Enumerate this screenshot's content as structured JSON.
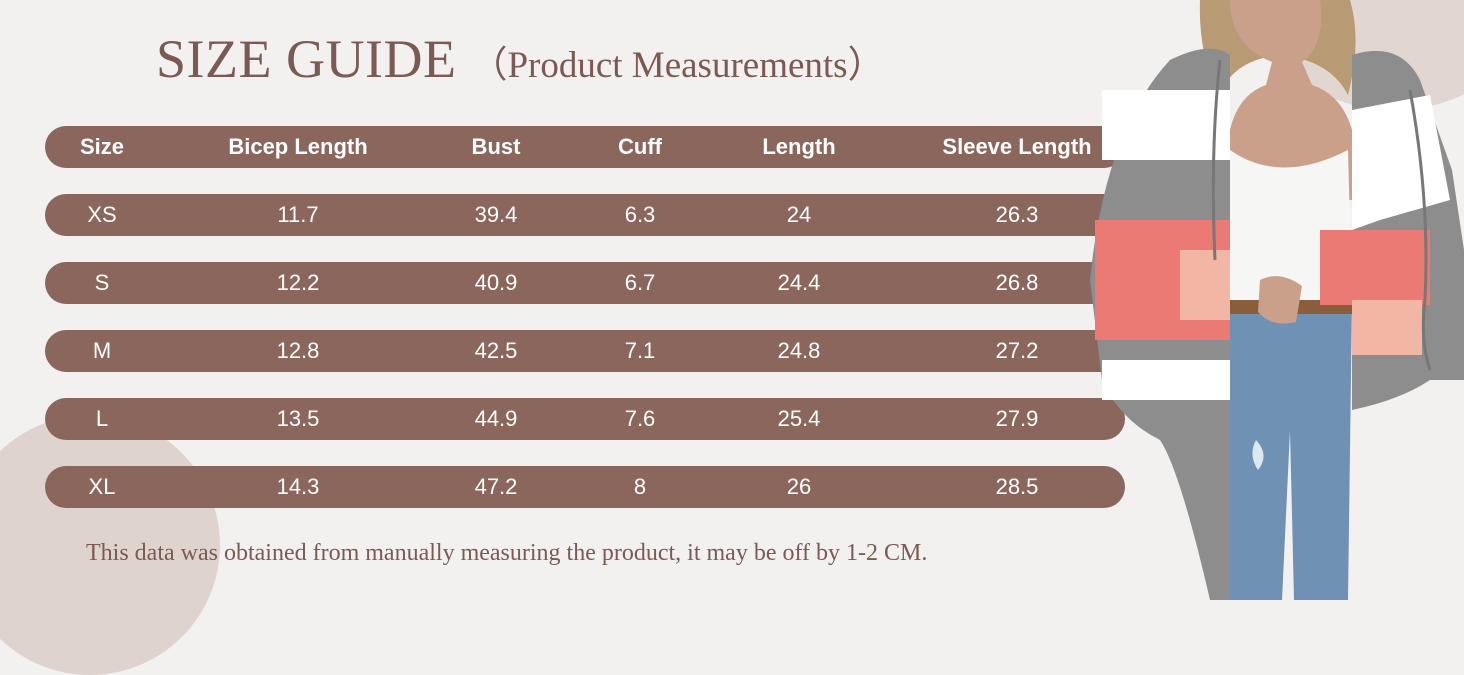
{
  "title": {
    "main": "SIZE GUIDE",
    "sub": "（Product Measurements）"
  },
  "table": {
    "headers": [
      "Size",
      "Bicep Length",
      "Bust",
      "Cuff",
      "Length",
      "Sleeve Length"
    ],
    "rows": [
      [
        "XS",
        "11.7",
        "39.4",
        "6.3",
        "24",
        "26.3"
      ],
      [
        "S",
        "12.2",
        "40.9",
        "6.7",
        "24.4",
        "26.8"
      ],
      [
        "M",
        "12.8",
        "42.5",
        "7.1",
        "24.8",
        "27.2"
      ],
      [
        "L",
        "13.5",
        "44.9",
        "7.6",
        "25.4",
        "27.9"
      ],
      [
        "XL",
        "14.3",
        "47.2",
        "8",
        "26",
        "28.5"
      ]
    ]
  },
  "note": "This data was obtained from manually measuring the product, it may be off by 1-2 CM.",
  "colors": {
    "background": "#f2f1ef",
    "row_fill": "#8b665c",
    "title_text": "#7a5a52",
    "cell_text": "#ffffff"
  },
  "image": {
    "subject": "model-in-striped-knit-cardigan"
  }
}
